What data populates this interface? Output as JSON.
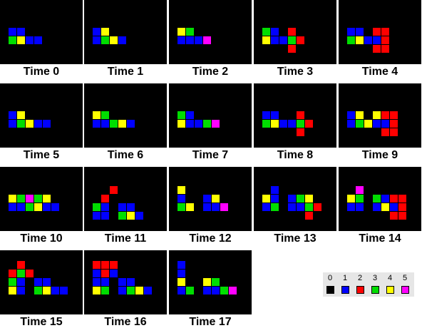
{
  "palette": [
    "#000000",
    "#0000ff",
    "#ff0000",
    "#00dd00",
    "#ffff00",
    "#ff00ff"
  ],
  "legend": [
    {
      "value": "0",
      "color": "#000000"
    },
    {
      "value": "1",
      "color": "#0000ff"
    },
    {
      "value": "2",
      "color": "#ff0000"
    },
    {
      "value": "3",
      "color": "#00dd00"
    },
    {
      "value": "4",
      "color": "#ffff00"
    },
    {
      "value": "5",
      "color": "#ff00ff"
    }
  ],
  "frames": [
    {
      "label": "Time 0",
      "cells": [
        [
          0,
          0,
          1
        ],
        [
          1,
          0,
          1
        ],
        [
          0,
          1,
          3
        ],
        [
          1,
          1,
          4
        ],
        [
          2,
          1,
          1
        ],
        [
          3,
          1,
          1
        ]
      ]
    },
    {
      "label": "Time 1",
      "cells": [
        [
          0,
          0,
          1
        ],
        [
          1,
          0,
          4
        ],
        [
          0,
          1,
          1
        ],
        [
          1,
          1,
          3
        ],
        [
          2,
          1,
          4
        ],
        [
          3,
          1,
          1
        ]
      ]
    },
    {
      "label": "Time 2",
      "cells": [
        [
          0,
          0,
          4
        ],
        [
          1,
          0,
          3
        ],
        [
          0,
          1,
          1
        ],
        [
          1,
          1,
          1
        ],
        [
          2,
          1,
          1
        ],
        [
          3,
          1,
          5
        ]
      ]
    },
    {
      "label": "Time 3",
      "cells": [
        [
          0,
          0,
          3
        ],
        [
          1,
          0,
          1
        ],
        [
          3,
          0,
          2
        ],
        [
          0,
          1,
          4
        ],
        [
          1,
          1,
          1
        ],
        [
          2,
          1,
          1
        ],
        [
          3,
          1,
          3
        ],
        [
          4,
          1,
          2
        ],
        [
          3,
          2,
          2
        ]
      ]
    },
    {
      "label": "Time 4",
      "cells": [
        [
          0,
          0,
          1
        ],
        [
          1,
          0,
          1
        ],
        [
          3,
          0,
          2
        ],
        [
          4,
          0,
          2
        ],
        [
          0,
          1,
          3
        ],
        [
          1,
          1,
          4
        ],
        [
          2,
          1,
          1
        ],
        [
          3,
          1,
          1
        ],
        [
          4,
          1,
          2
        ],
        [
          3,
          2,
          2
        ],
        [
          4,
          2,
          2
        ]
      ]
    },
    {
      "label": "Time 5",
      "cells": [
        [
          0,
          0,
          1
        ],
        [
          1,
          0,
          4
        ],
        [
          0,
          1,
          1
        ],
        [
          1,
          1,
          3
        ],
        [
          2,
          1,
          4
        ],
        [
          3,
          1,
          1
        ],
        [
          4,
          1,
          1
        ]
      ]
    },
    {
      "label": "Time 6",
      "cells": [
        [
          0,
          0,
          4
        ],
        [
          1,
          0,
          3
        ],
        [
          0,
          1,
          1
        ],
        [
          1,
          1,
          1
        ],
        [
          2,
          1,
          3
        ],
        [
          3,
          1,
          4
        ],
        [
          4,
          1,
          1
        ]
      ]
    },
    {
      "label": "Time 7",
      "cells": [
        [
          0,
          0,
          3
        ],
        [
          1,
          0,
          1
        ],
        [
          0,
          1,
          4
        ],
        [
          1,
          1,
          1
        ],
        [
          2,
          1,
          1
        ],
        [
          3,
          1,
          3
        ],
        [
          4,
          1,
          5
        ]
      ]
    },
    {
      "label": "Time 8",
      "cells": [
        [
          0,
          0,
          1
        ],
        [
          1,
          0,
          1
        ],
        [
          4,
          0,
          2
        ],
        [
          0,
          1,
          3
        ],
        [
          1,
          1,
          4
        ],
        [
          2,
          1,
          1
        ],
        [
          3,
          1,
          1
        ],
        [
          4,
          1,
          3
        ],
        [
          5,
          1,
          2
        ],
        [
          4,
          2,
          2
        ]
      ]
    },
    {
      "label": "Time 9",
      "cells": [
        [
          0,
          0,
          1
        ],
        [
          1,
          0,
          4
        ],
        [
          3,
          0,
          4
        ],
        [
          4,
          0,
          2
        ],
        [
          5,
          0,
          2
        ],
        [
          0,
          1,
          1
        ],
        [
          1,
          1,
          3
        ],
        [
          2,
          1,
          4
        ],
        [
          3,
          1,
          1
        ],
        [
          4,
          1,
          1
        ],
        [
          5,
          1,
          2
        ],
        [
          4,
          2,
          2
        ],
        [
          5,
          2,
          2
        ]
      ]
    },
    {
      "label": "Time 10",
      "cells": [
        [
          0,
          0,
          4
        ],
        [
          1,
          0,
          3
        ],
        [
          2,
          0,
          5
        ],
        [
          3,
          0,
          3
        ],
        [
          4,
          0,
          4
        ],
        [
          0,
          1,
          1
        ],
        [
          1,
          1,
          1
        ],
        [
          2,
          1,
          3
        ],
        [
          3,
          1,
          4
        ],
        [
          4,
          1,
          1
        ],
        [
          5,
          1,
          1
        ]
      ]
    },
    {
      "label": "Time 11",
      "cells": [
        [
          2,
          -1,
          2
        ],
        [
          1,
          0,
          2
        ],
        [
          0,
          1,
          3
        ],
        [
          1,
          1,
          1
        ],
        [
          0,
          2,
          1
        ],
        [
          1,
          2,
          1
        ],
        [
          3,
          1,
          1
        ],
        [
          4,
          1,
          1
        ],
        [
          3,
          2,
          3
        ],
        [
          4,
          2,
          4
        ],
        [
          5,
          2,
          1
        ]
      ]
    },
    {
      "label": "Time 12",
      "cells": [
        [
          0,
          -1,
          4
        ],
        [
          0,
          0,
          1
        ],
        [
          0,
          1,
          3
        ],
        [
          1,
          1,
          4
        ],
        [
          3,
          0,
          1
        ],
        [
          4,
          0,
          4
        ],
        [
          3,
          1,
          1
        ],
        [
          4,
          1,
          1
        ],
        [
          5,
          1,
          5
        ]
      ]
    },
    {
      "label": "Time 13",
      "cells": [
        [
          1,
          -1,
          1
        ],
        [
          0,
          0,
          4
        ],
        [
          1,
          0,
          1
        ],
        [
          0,
          1,
          1
        ],
        [
          1,
          1,
          3
        ],
        [
          3,
          0,
          1
        ],
        [
          4,
          0,
          3
        ],
        [
          5,
          0,
          4
        ],
        [
          3,
          1,
          1
        ],
        [
          4,
          1,
          1
        ],
        [
          5,
          1,
          3
        ],
        [
          6,
          1,
          2
        ],
        [
          5,
          2,
          2
        ]
      ]
    },
    {
      "label": "Time 14",
      "cells": [
        [
          1,
          -1,
          5
        ],
        [
          0,
          0,
          4
        ],
        [
          1,
          0,
          3
        ],
        [
          0,
          1,
          1
        ],
        [
          1,
          1,
          1
        ],
        [
          3,
          0,
          3
        ],
        [
          4,
          0,
          1
        ],
        [
          5,
          0,
          2
        ],
        [
          6,
          0,
          2
        ],
        [
          3,
          1,
          1
        ],
        [
          4,
          1,
          4
        ],
        [
          5,
          1,
          1
        ],
        [
          6,
          1,
          2
        ],
        [
          5,
          2,
          2
        ],
        [
          6,
          2,
          2
        ]
      ]
    },
    {
      "label": "Time 15",
      "cells": [
        [
          1,
          -2,
          2
        ],
        [
          0,
          -1,
          2
        ],
        [
          1,
          -1,
          3
        ],
        [
          2,
          -1,
          2
        ],
        [
          0,
          0,
          3
        ],
        [
          1,
          0,
          1
        ],
        [
          0,
          1,
          4
        ],
        [
          1,
          1,
          1
        ],
        [
          3,
          0,
          1
        ],
        [
          4,
          0,
          1
        ],
        [
          3,
          1,
          3
        ],
        [
          4,
          1,
          4
        ],
        [
          5,
          1,
          1
        ],
        [
          6,
          1,
          1
        ]
      ]
    },
    {
      "label": "Time 16",
      "cells": [
        [
          0,
          -2,
          2
        ],
        [
          1,
          -2,
          2
        ],
        [
          2,
          -2,
          2
        ],
        [
          0,
          -1,
          1
        ],
        [
          1,
          -1,
          2
        ],
        [
          2,
          -1,
          1
        ],
        [
          0,
          0,
          1
        ],
        [
          1,
          0,
          1
        ],
        [
          0,
          1,
          4
        ],
        [
          1,
          1,
          3
        ],
        [
          3,
          0,
          1
        ],
        [
          4,
          0,
          1
        ],
        [
          3,
          1,
          1
        ],
        [
          4,
          1,
          3
        ],
        [
          5,
          1,
          4
        ],
        [
          6,
          1,
          1
        ]
      ]
    },
    {
      "label": "Time 17",
      "cells": [
        [
          0,
          -2,
          1
        ],
        [
          0,
          -1,
          1
        ],
        [
          0,
          0,
          4
        ],
        [
          0,
          1,
          1
        ],
        [
          1,
          1,
          3
        ],
        [
          3,
          0,
          4
        ],
        [
          4,
          0,
          3
        ],
        [
          3,
          1,
          1
        ],
        [
          4,
          1,
          1
        ],
        [
          5,
          1,
          3
        ],
        [
          6,
          1,
          5
        ]
      ]
    }
  ]
}
